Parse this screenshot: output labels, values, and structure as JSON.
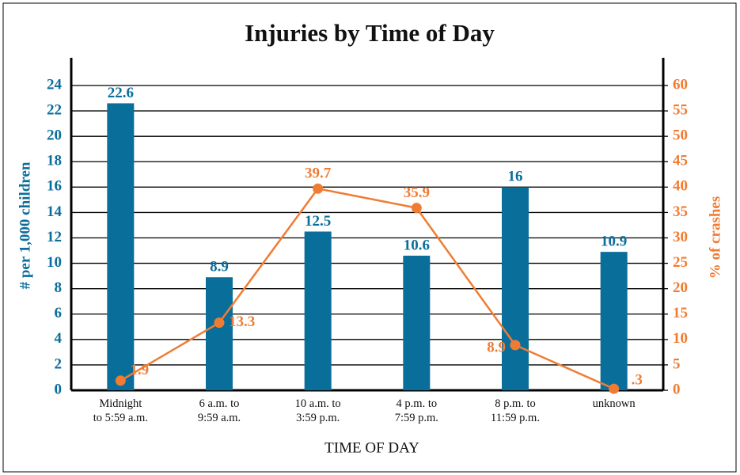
{
  "chart_data": {
    "type": "bar-line",
    "title": "Injuries by Time of Day",
    "x_label": "TIME OF DAY",
    "y_label": "# per 1,000 children",
    "y2_label": "% of crashes",
    "categories": [
      "Midnight\nto 5:59 a.m.",
      "6 a.m. to\n9:59 a.m.",
      "10 a.m. to\n3:59 p.m.",
      "4 p.m. to\n7:59 p.m.",
      "8 p.m. to\n11:59 p.m.",
      "unknown"
    ],
    "series": [
      {
        "name": "# per 1,000 children",
        "type": "bar",
        "color": "#0a6e9a",
        "values": [
          22.6,
          8.9,
          12.5,
          10.6,
          16,
          10.9
        ]
      },
      {
        "name": "% of crashes",
        "type": "line",
        "axis": "y2",
        "color": "#f07c33",
        "values": [
          1.9,
          13.3,
          39.7,
          35.9,
          8.9,
          0.3
        ],
        "value_labels": [
          "1.9",
          "13.3",
          "39.7",
          "35.9",
          "8.9",
          ".3"
        ]
      }
    ],
    "ylim": [
      0,
      24
    ],
    "yticks": [
      0,
      2,
      4,
      6,
      8,
      10,
      12,
      14,
      16,
      18,
      20,
      22,
      24
    ],
    "y2lim": [
      0,
      60
    ],
    "y2ticks": [
      0,
      5,
      10,
      15,
      20,
      25,
      30,
      35,
      40,
      45,
      50,
      55,
      60
    ],
    "grid": true
  }
}
